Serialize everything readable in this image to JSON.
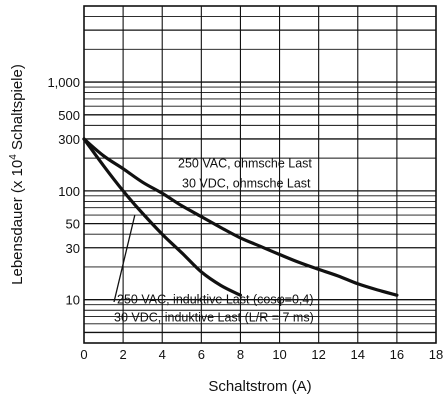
{
  "chart_data": {
    "type": "line",
    "xlabel": "Schaltstrom (A)",
    "ylabel_main": "Lebensdauer (x 10",
    "ylabel_sup": "4",
    "ylabel_tail": " Schaltspiele)",
    "xlim": [
      0,
      18
    ],
    "ylim": [
      4,
      5000
    ],
    "yscale": "log",
    "grid": true,
    "xticks": [
      0,
      2,
      4,
      6,
      8,
      10,
      12,
      14,
      16,
      18
    ],
    "xtick_labels": [
      "0",
      "2",
      "4",
      "6",
      "8",
      "10",
      "12",
      "14",
      "16",
      "18"
    ],
    "yticks": [
      10,
      30,
      50,
      100,
      300,
      500,
      1000
    ],
    "ytick_labels": [
      "10",
      "30",
      "50",
      "100",
      "300",
      "500",
      "1,000"
    ],
    "series": [
      {
        "name": "ohmsche-last",
        "x": [
          0,
          1,
          2,
          3,
          4,
          5,
          6,
          7,
          8,
          9,
          10,
          11,
          12,
          13,
          14,
          15,
          16
        ],
        "y": [
          300,
          210,
          160,
          120,
          95,
          73,
          58,
          46,
          37,
          31,
          26,
          22,
          19,
          16.5,
          14,
          12.3,
          11
        ]
      },
      {
        "name": "induktive-last",
        "x": [
          0,
          1,
          2,
          3,
          4,
          5,
          6,
          7,
          8
        ],
        "y": [
          300,
          170,
          100,
          62,
          40,
          27,
          18,
          13.5,
          11
        ]
      }
    ],
    "annotations": [
      {
        "text": "250 VAC, ohmsche Last"
      },
      {
        "text": "30 VDC, ohmsche Last"
      },
      {
        "text": "250 VAC, induktive Last (cosφ=0,4)"
      },
      {
        "text": "30 VDC, induktive Last (L/R = 7 ms)"
      }
    ]
  }
}
